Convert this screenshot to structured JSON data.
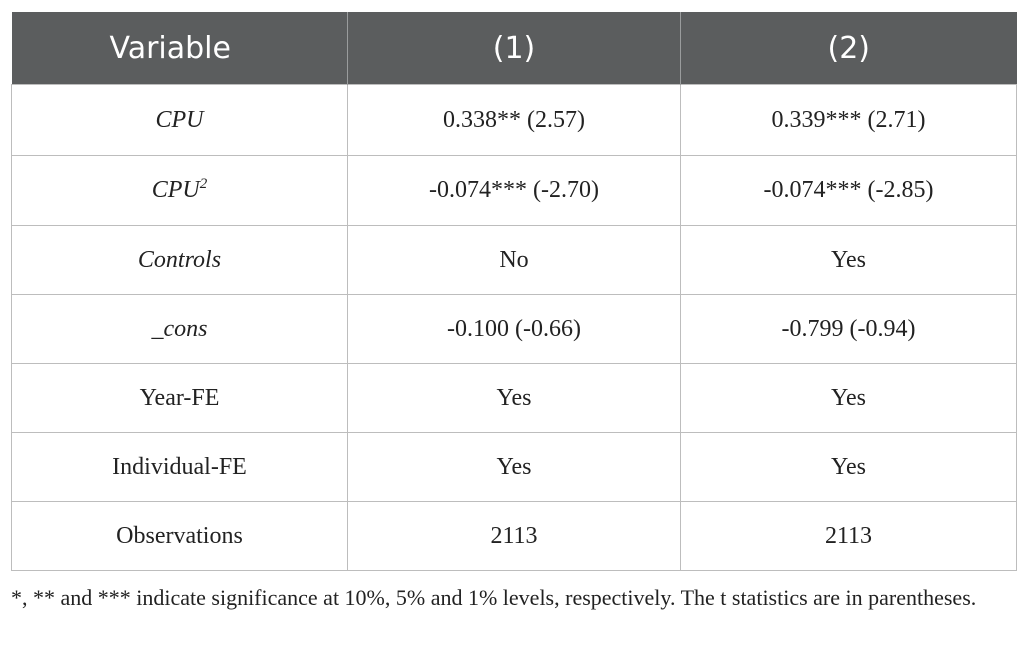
{
  "table": {
    "headers": [
      "Variable",
      "(1)",
      "(2)"
    ],
    "rows": [
      {
        "variable": "CPU",
        "superscript": "",
        "c1": "0.338** (2.57)",
        "c2": "0.339*** (2.71)"
      },
      {
        "variable": "CPU",
        "superscript": "2",
        "c1": "-0.074*** (-2.70)",
        "c2": "-0.074*** (-2.85)"
      },
      {
        "variable": "Controls",
        "superscript": "",
        "c1": "No",
        "c2": "Yes"
      },
      {
        "variable": "_cons",
        "superscript": "",
        "c1": "-0.100 (-0.66)",
        "c2": "-0.799 (-0.94)"
      },
      {
        "variable": "Year-FE",
        "superscript": "",
        "c1": "Yes",
        "c2": "Yes"
      },
      {
        "variable": "Individual-FE",
        "superscript": "",
        "c1": "Yes",
        "c2": "Yes"
      },
      {
        "variable": "Observations",
        "superscript": "",
        "c1": "2113",
        "c2": "2113"
      }
    ]
  },
  "footnote": "*, ** and *** indicate significance at 10%, 5% and 1% levels, respectively. The t statistics are in parentheses."
}
